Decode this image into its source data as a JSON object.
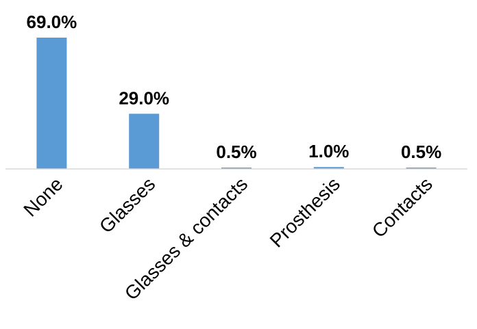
{
  "chart_data": {
    "type": "bar",
    "categories": [
      "None",
      "Glasses",
      "Glasses & contacts",
      "Prosthesis",
      "Contacts"
    ],
    "values": [
      69.0,
      29.0,
      0.5,
      1.0,
      0.5
    ],
    "data_labels": [
      "69.0%",
      "29.0%",
      "0.5%",
      "1.0%",
      "0.5%"
    ],
    "title": "",
    "xlabel": "",
    "ylabel": "",
    "ylim": [
      0,
      69.0
    ],
    "grid": false,
    "legend": "none",
    "bar_color": "#5b9bd5",
    "axis_color": "#d9d9d9"
  }
}
